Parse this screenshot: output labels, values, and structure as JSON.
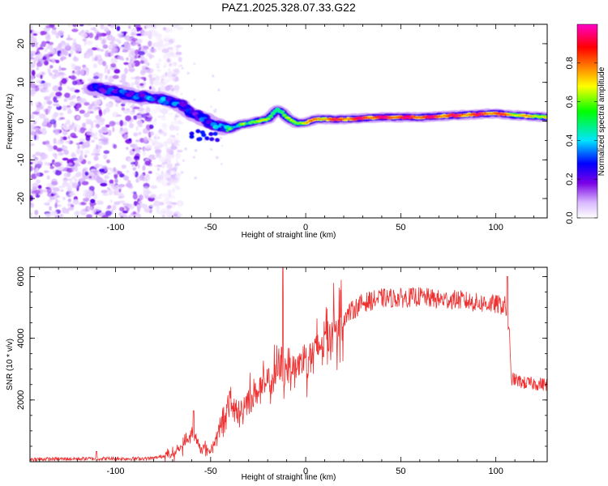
{
  "title": "PAZ1.2025.328.07.33.G22",
  "chart_data": [
    {
      "type": "heatmap",
      "name": "spectrogram",
      "xlabel": "Height of straight line (km)",
      "ylabel": "Frequency (Hz)",
      "xlim": [
        -145,
        127
      ],
      "ylim": [
        -25,
        25
      ],
      "xticks": [
        -100,
        -50,
        0,
        50,
        100
      ],
      "yticks": [
        -20,
        -10,
        0,
        10,
        20
      ],
      "colorbar": {
        "label": "Normalized spectral amplitude",
        "range": [
          0,
          1
        ],
        "ticks": [
          0.0,
          0.2,
          0.4,
          0.6,
          0.8
        ],
        "colors": [
          "#ffffff",
          "#d9b8ff",
          "#7a00e6",
          "#0000ff",
          "#00e5ff",
          "#00ff00",
          "#ffff00",
          "#ff8000",
          "#ff0000",
          "#ff00c8"
        ]
      },
      "ridge": {
        "x": [
          -110,
          -100,
          -90,
          -80,
          -70,
          -65,
          -60,
          -55,
          -50,
          -45,
          -40,
          -35,
          -30,
          -25,
          -20,
          -15,
          -13,
          -10,
          -5,
          0,
          5,
          10,
          20,
          40,
          60,
          80,
          100,
          110,
          127
        ],
        "y": [
          8.5,
          7.5,
          6.5,
          6,
          5,
          4,
          2,
          1,
          -0.5,
          -1.5,
          -2,
          -1,
          -0.5,
          0,
          0.5,
          3,
          2.5,
          1,
          -0.5,
          -0.5,
          0.5,
          0.5,
          0.5,
          1,
          1,
          1.5,
          2,
          1.5,
          1
        ],
        "amplitude": [
          0.3,
          0.35,
          0.35,
          0.4,
          0.4,
          0.35,
          0.3,
          0.35,
          0.4,
          0.45,
          0.5,
          0.55,
          0.6,
          0.6,
          0.55,
          0.55,
          0.5,
          0.55,
          0.6,
          0.7,
          0.75,
          0.8,
          0.85,
          0.88,
          0.88,
          0.85,
          0.85,
          0.7,
          0.65
        ]
      },
      "noise_region_x": [
        -145,
        -72
      ]
    },
    {
      "type": "line",
      "name": "snr",
      "xlabel": "Height of straight line (km)",
      "ylabel": "SNR (10 * v/v)",
      "xlim": [
        -145,
        127
      ],
      "ylim": [
        0,
        6300
      ],
      "xticks": [
        -100,
        -50,
        0,
        50,
        100
      ],
      "yticks": [
        2000,
        4000,
        6000
      ],
      "color": "#ee3030",
      "envelope": {
        "x": [
          -145,
          -110,
          -90,
          -80,
          -70,
          -65,
          -60,
          -55,
          -50,
          -45,
          -40,
          -35,
          -30,
          -25,
          -20,
          -15,
          -10,
          -5,
          0,
          5,
          10,
          20,
          30,
          40,
          50,
          60,
          70,
          80,
          90,
          100,
          105,
          107,
          108,
          110,
          115,
          127
        ],
        "y": [
          80,
          100,
          100,
          110,
          250,
          500,
          900,
          450,
          350,
          1100,
          1900,
          1500,
          2100,
          2300,
          2500,
          2900,
          3150,
          3050,
          3400,
          3500,
          4100,
          4700,
          5150,
          5300,
          5300,
          5350,
          5250,
          5250,
          5150,
          5100,
          5050,
          4300,
          2700,
          2650,
          2550,
          2500
        ]
      },
      "spikes": [
        {
          "x": -110,
          "y": 330
        },
        {
          "x": -59,
          "y": 1650
        },
        {
          "x": -12,
          "y": 6300
        },
        {
          "x": 106,
          "y": 6000
        }
      ]
    }
  ]
}
